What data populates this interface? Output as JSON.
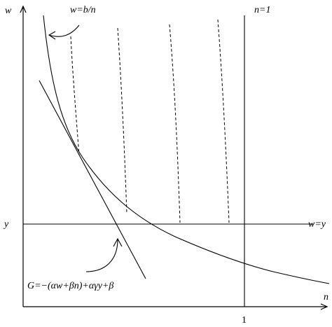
{
  "axes": {
    "y_label": "w",
    "x_label": "n",
    "x_tick_label": "1",
    "horizontal_line_left_label": "y",
    "horizontal_line_right_label": "w=y",
    "vertical_line_label": "n=1"
  },
  "labels": {
    "hyperbola": "w=b/n",
    "tangent": "G=−(αw+βn)+αγy+β"
  }
}
